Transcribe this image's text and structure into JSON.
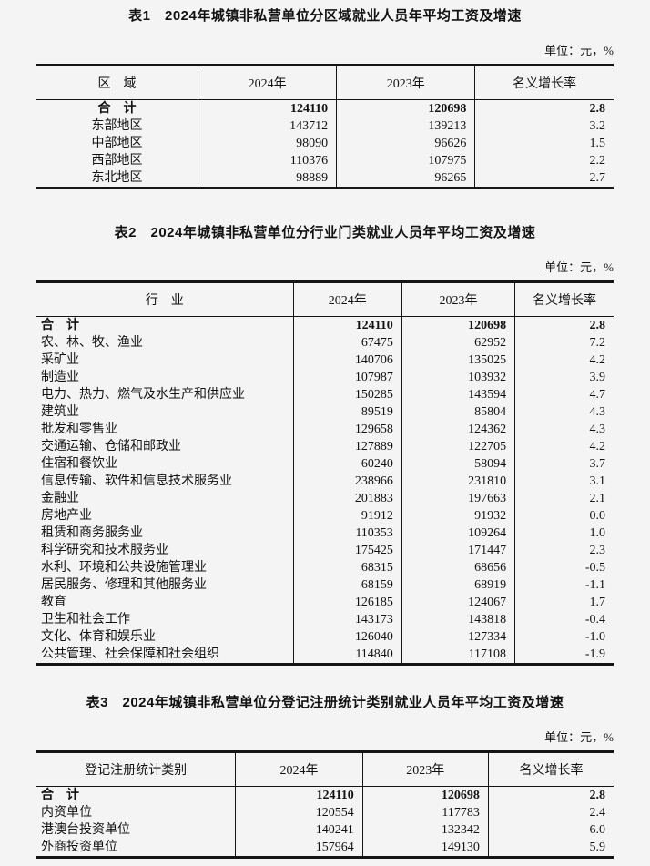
{
  "tables": [
    {
      "title": "表1　2024年城镇非私营单位分区域就业人员年平均工资及增速",
      "unit": "单位：元，%",
      "columns": [
        "区　域",
        "2024年",
        "2023年",
        "名义增长率"
      ],
      "rows": [
        {
          "cells": [
            "合　计",
            "124110",
            "120698",
            "2.8"
          ],
          "bold": true
        },
        {
          "cells": [
            "东部地区",
            "143712",
            "139213",
            "3.2"
          ],
          "bold": false
        },
        {
          "cells": [
            "中部地区",
            "98090",
            "96626",
            "1.5"
          ],
          "bold": false
        },
        {
          "cells": [
            "西部地区",
            "110376",
            "107975",
            "2.2"
          ],
          "bold": false
        },
        {
          "cells": [
            "东北地区",
            "98889",
            "96265",
            "2.7"
          ],
          "bold": false
        }
      ]
    },
    {
      "title": "表2　2024年城镇非私营单位分行业门类就业人员年平均工资及增速",
      "unit": "单位：元，%",
      "columns": [
        "行　业",
        "2024年",
        "2023年",
        "名义增长率"
      ],
      "rows": [
        {
          "cells": [
            "合　计",
            "124110",
            "120698",
            "2.8"
          ],
          "bold": true
        },
        {
          "cells": [
            "农、林、牧、渔业",
            "67475",
            "62952",
            "7.2"
          ],
          "bold": false
        },
        {
          "cells": [
            "采矿业",
            "140706",
            "135025",
            "4.2"
          ],
          "bold": false
        },
        {
          "cells": [
            "制造业",
            "107987",
            "103932",
            "3.9"
          ],
          "bold": false
        },
        {
          "cells": [
            "电力、热力、燃气及水生产和供应业",
            "150285",
            "143594",
            "4.7"
          ],
          "bold": false
        },
        {
          "cells": [
            "建筑业",
            "89519",
            "85804",
            "4.3"
          ],
          "bold": false
        },
        {
          "cells": [
            "批发和零售业",
            "129658",
            "124362",
            "4.3"
          ],
          "bold": false
        },
        {
          "cells": [
            "交通运输、仓储和邮政业",
            "127889",
            "122705",
            "4.2"
          ],
          "bold": false
        },
        {
          "cells": [
            "住宿和餐饮业",
            "60240",
            "58094",
            "3.7"
          ],
          "bold": false
        },
        {
          "cells": [
            "信息传输、软件和信息技术服务业",
            "238966",
            "231810",
            "3.1"
          ],
          "bold": false
        },
        {
          "cells": [
            "金融业",
            "201883",
            "197663",
            "2.1"
          ],
          "bold": false
        },
        {
          "cells": [
            "房地产业",
            "91912",
            "91932",
            "0.0"
          ],
          "bold": false
        },
        {
          "cells": [
            "租赁和商务服务业",
            "110353",
            "109264",
            "1.0"
          ],
          "bold": false
        },
        {
          "cells": [
            "科学研究和技术服务业",
            "175425",
            "171447",
            "2.3"
          ],
          "bold": false
        },
        {
          "cells": [
            "水利、环境和公共设施管理业",
            "68315",
            "68656",
            "-0.5"
          ],
          "bold": false
        },
        {
          "cells": [
            "居民服务、修理和其他服务业",
            "68159",
            "68919",
            "-1.1"
          ],
          "bold": false
        },
        {
          "cells": [
            "教育",
            "126185",
            "124067",
            "1.7"
          ],
          "bold": false
        },
        {
          "cells": [
            "卫生和社会工作",
            "143173",
            "143818",
            "-0.4"
          ],
          "bold": false
        },
        {
          "cells": [
            "文化、体育和娱乐业",
            "126040",
            "127334",
            "-1.0"
          ],
          "bold": false
        },
        {
          "cells": [
            "公共管理、社会保障和社会组织",
            "114840",
            "117108",
            "-1.9"
          ],
          "bold": false
        }
      ]
    },
    {
      "title": "表3　2024年城镇非私营单位分登记注册统计类别就业人员年平均工资及增速",
      "unit": "单位：元，%",
      "columns": [
        "登记注册统计类别",
        "2024年",
        "2023年",
        "名义增长率"
      ],
      "rows": [
        {
          "cells": [
            "合　计",
            "124110",
            "120698",
            "2.8"
          ],
          "bold": true
        },
        {
          "cells": [
            "内资单位",
            "120554",
            "117783",
            "2.4"
          ],
          "bold": false
        },
        {
          "cells": [
            "港澳台投资单位",
            "140241",
            "132342",
            "6.0"
          ],
          "bold": false
        },
        {
          "cells": [
            "外商投资单位",
            "157964",
            "149130",
            "5.9"
          ],
          "bold": false
        }
      ]
    }
  ]
}
